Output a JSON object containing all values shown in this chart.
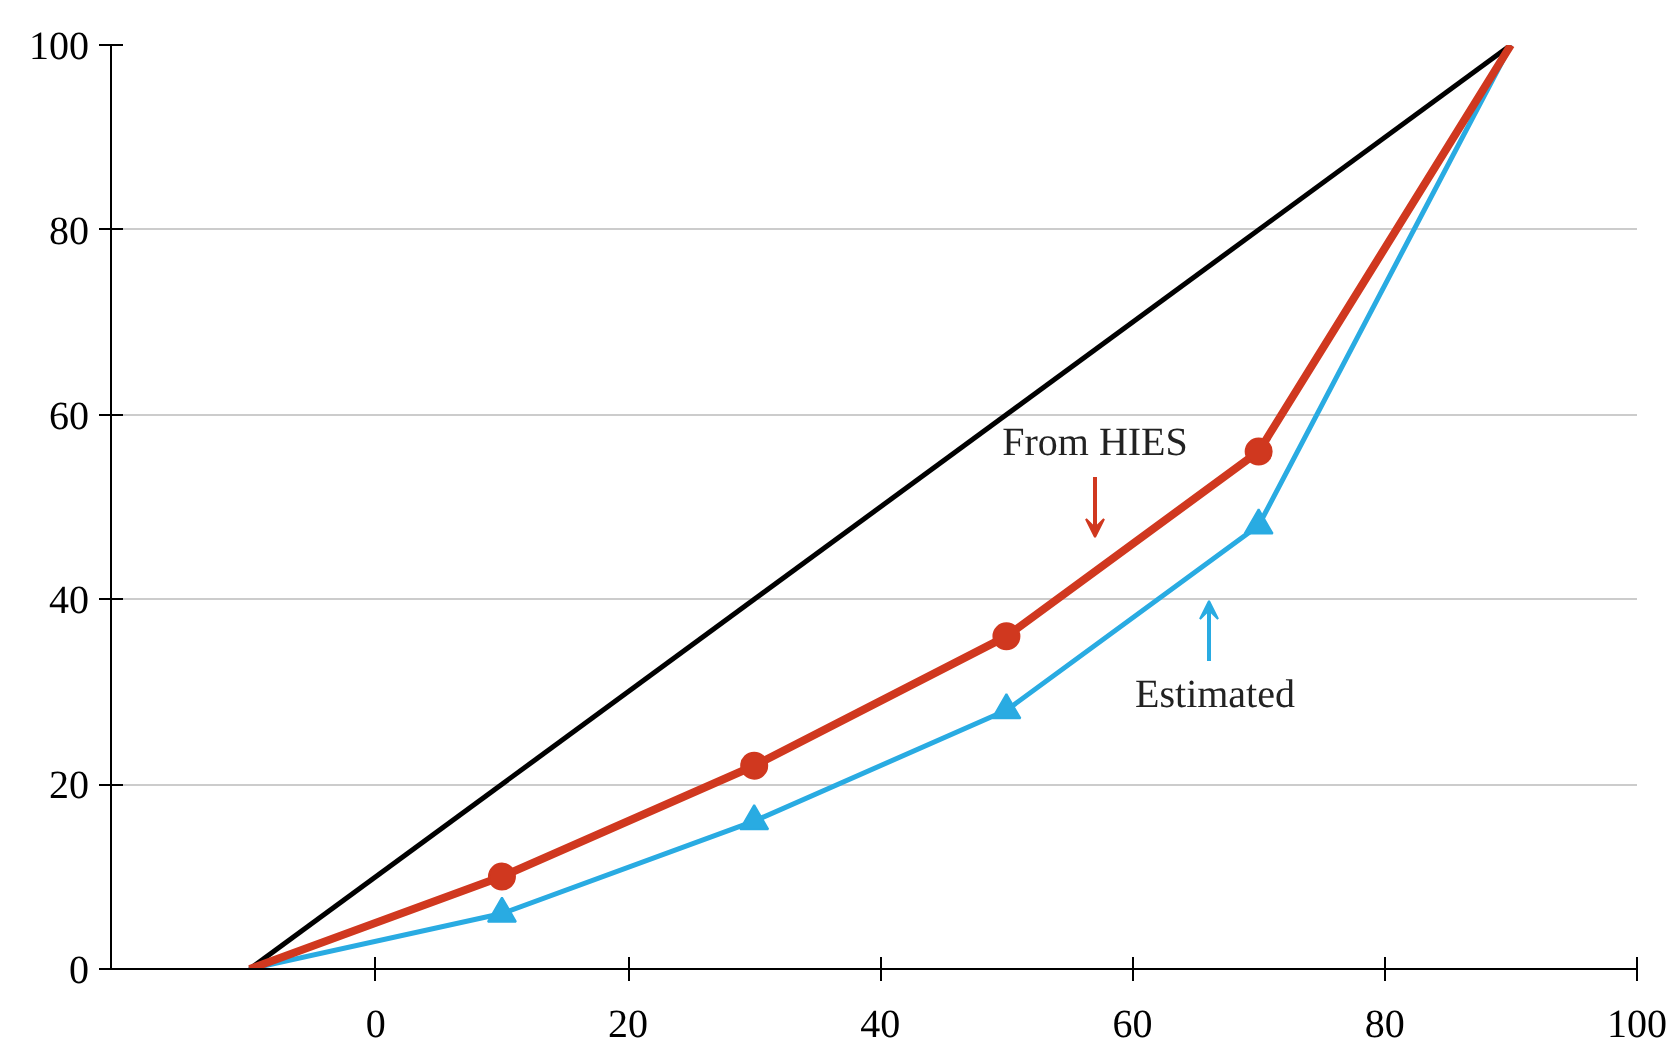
{
  "chart_data": {
    "type": "line",
    "xlim": [
      -21,
      100
    ],
    "xticks": [
      0,
      20,
      40,
      60,
      80,
      100
    ],
    "ylim": [
      0,
      100
    ],
    "yticks": [
      0,
      20,
      40,
      60,
      80,
      100
    ],
    "grid": "y",
    "series": [
      {
        "color": "#000000",
        "x": [
          -10,
          90
        ],
        "values": [
          0,
          100
        ],
        "marker": "none"
      },
      {
        "color": "#29abe2",
        "x": [
          -10,
          10,
          30,
          50,
          70,
          90
        ],
        "values": [
          0,
          6,
          16,
          28,
          48,
          100
        ],
        "marker": "none"
      },
      {
        "color": "#d0381f",
        "x": [
          -10,
          10,
          30,
          50,
          70,
          90
        ],
        "values": [
          0,
          10,
          22,
          36,
          56,
          100
        ],
        "marker": "none"
      },
      {
        "type": "scatter",
        "color": "#29abe2",
        "x": [
          10,
          30,
          50,
          70
        ],
        "values": [
          6,
          16,
          28,
          48
        ],
        "marker": "triangle"
      },
      {
        "type": "scatter",
        "color": "#d0381f",
        "x": [
          10,
          30,
          50,
          70
        ],
        "values": [
          10,
          22,
          36,
          56
        ],
        "marker": "circle"
      }
    ],
    "annotations": [
      "From HIES",
      "Estimated"
    ]
  }
}
